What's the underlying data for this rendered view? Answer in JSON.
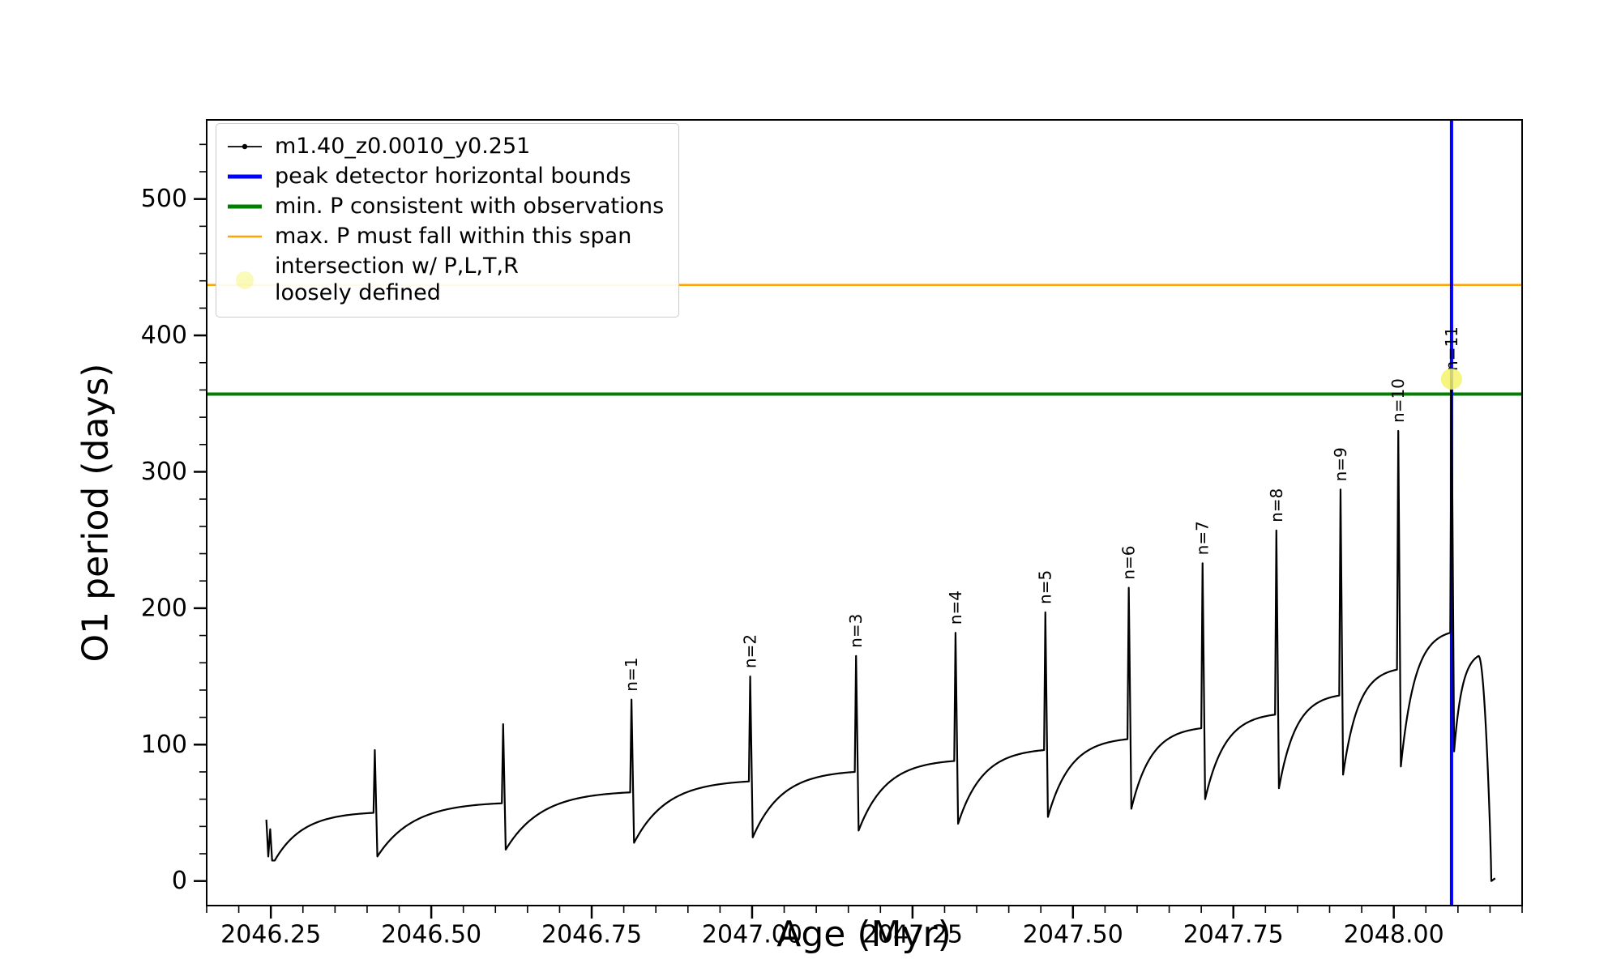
{
  "chart_data": {
    "type": "line",
    "series_name": "m1.40_z0.0010_y0.251",
    "xlabel": "Age (Myr)",
    "ylabel": "O1 period (days)",
    "xlim": [
      2046.15,
      2048.2
    ],
    "ylim": [
      -18,
      558
    ],
    "xtick_values": [
      2046.25,
      2046.5,
      2046.75,
      2047.0,
      2047.25,
      2047.5,
      2047.75,
      2048.0
    ],
    "xtick_labels": [
      "2046.25",
      "2046.50",
      "2046.75",
      "2047.00",
      "2047.25",
      "2047.50",
      "2047.75",
      "2048.00"
    ],
    "ytick_values": [
      0,
      100,
      200,
      300,
      400,
      500
    ],
    "ytick_labels": [
      "0",
      "100",
      "200",
      "300",
      "400",
      "500"
    ],
    "x_minor_step": 0.05,
    "y_minor_step": 20,
    "line_color": "#000000",
    "hlines": [
      {
        "name": "max-p-span",
        "y": 437,
        "color": "#ffa500",
        "width": 2.5
      },
      {
        "name": "min-p-observed",
        "y": 357,
        "color": "#008000",
        "width": 4
      }
    ],
    "vlines": [
      {
        "name": "peak-detector-bound",
        "x": 2048.09,
        "color": "#0000ff",
        "width": 4
      }
    ],
    "intersection_marker": {
      "x": 2048.09,
      "y": 368,
      "color": "#f3f368",
      "radius": 13,
      "opacity": 0.85
    },
    "start_transient": [
      [
        2046.243,
        45
      ],
      [
        2046.246,
        18
      ],
      [
        2046.249,
        38
      ],
      [
        2046.252,
        15
      ],
      [
        2046.256,
        15
      ]
    ],
    "cycles": [
      {
        "x0": 2046.256,
        "y0": 15,
        "x1": 2046.41,
        "y1": 50,
        "peak": 96,
        "label": null
      },
      {
        "x0": 2046.416,
        "y0": 18,
        "x1": 2046.61,
        "y1": 57,
        "peak": 115,
        "label": null
      },
      {
        "x0": 2046.616,
        "y0": 23,
        "x1": 2046.81,
        "y1": 65,
        "peak": 133,
        "label": "n=1"
      },
      {
        "x0": 2046.816,
        "y0": 28,
        "x1": 2046.995,
        "y1": 73,
        "peak": 150,
        "label": "n=2"
      },
      {
        "x0": 2047.001,
        "y0": 32,
        "x1": 2047.16,
        "y1": 80,
        "peak": 165,
        "label": "n=3"
      },
      {
        "x0": 2047.166,
        "y0": 37,
        "x1": 2047.315,
        "y1": 88,
        "peak": 182,
        "label": "n=4"
      },
      {
        "x0": 2047.321,
        "y0": 42,
        "x1": 2047.455,
        "y1": 96,
        "peak": 197,
        "label": "n=5"
      },
      {
        "x0": 2047.461,
        "y0": 47,
        "x1": 2047.585,
        "y1": 104,
        "peak": 215,
        "label": "n=6"
      },
      {
        "x0": 2047.591,
        "y0": 53,
        "x1": 2047.7,
        "y1": 112,
        "peak": 233,
        "label": "n=7"
      },
      {
        "x0": 2047.706,
        "y0": 60,
        "x1": 2047.815,
        "y1": 122,
        "peak": 257,
        "label": "n=8"
      },
      {
        "x0": 2047.821,
        "y0": 68,
        "x1": 2047.915,
        "y1": 136,
        "peak": 287,
        "label": "n=9"
      },
      {
        "x0": 2047.921,
        "y0": 78,
        "x1": 2048.005,
        "y1": 155,
        "peak": 330,
        "label": "n=10"
      },
      {
        "x0": 2048.011,
        "y0": 84,
        "x1": 2048.088,
        "y1": 182,
        "peak": 368,
        "label": "n=11"
      }
    ],
    "final_segment": {
      "x0": 2048.094,
      "y0": 95,
      "xh": 2048.132,
      "yh": 165,
      "x1": 2048.152,
      "y1": 0,
      "x2": 2048.158,
      "y2": 2
    }
  },
  "legend": {
    "items": [
      {
        "label": "m1.40_z0.0010_y0.251",
        "marker": "line-dot",
        "color": "#000000",
        "width": 1.8,
        "opacity": 1
      },
      {
        "label": "peak detector horizontal bounds",
        "marker": "line",
        "color": "#0000ff",
        "width": 5,
        "opacity": 1
      },
      {
        "label": "min. P consistent with observations",
        "marker": "line",
        "color": "#008000",
        "width": 5,
        "opacity": 1
      },
      {
        "label": "max. P must fall within this span",
        "marker": "line",
        "color": "#ffa500",
        "width": 2.5,
        "opacity": 1
      },
      {
        "label": "intersection w/ P,L,T,R\nloosely defined",
        "marker": "dot",
        "color": "#f3f368",
        "width": 11,
        "opacity": 0.45
      }
    ]
  }
}
